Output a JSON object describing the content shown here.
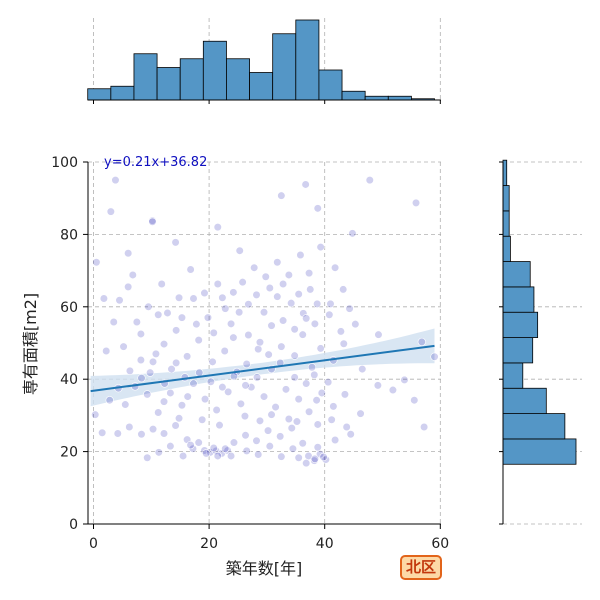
{
  "badge": {
    "label": "北区"
  },
  "chart_data": {
    "type": "scatter",
    "xlabel": "築年数[年]",
    "ylabel": "専有面積[m2]",
    "xlim": [
      -1,
      60
    ],
    "ylim": [
      0,
      100
    ],
    "xticks": [
      0,
      20,
      40,
      60
    ],
    "yticks": [
      0,
      20,
      40,
      60,
      80,
      100
    ],
    "grid": true,
    "regression": {
      "equation_label": "y=0.21x+36.82",
      "slope": 0.21,
      "intercept": 36.82,
      "x_range": [
        -0.5,
        59
      ],
      "ci_halfwidth_ends": [
        4.2,
        4.8
      ],
      "ci_halfwidth_mid": 1.6
    },
    "points": [
      [
        3.8,
        95
      ],
      [
        10.2,
        83.8
      ],
      [
        14.2,
        77.8
      ],
      [
        16.8,
        70.3
      ],
      [
        21.5,
        82
      ],
      [
        25.3,
        75.5
      ],
      [
        32.5,
        90.7
      ],
      [
        36.7,
        93.8
      ],
      [
        38.8,
        87.2
      ],
      [
        44.8,
        80.3
      ],
      [
        47.8,
        95
      ],
      [
        55.8,
        88.7
      ],
      [
        0.5,
        72.3
      ],
      [
        1.8,
        62.3
      ],
      [
        4.5,
        61.8
      ],
      [
        6,
        65.5
      ],
      [
        3,
        86.3
      ],
      [
        6,
        74.8
      ],
      [
        7.5,
        55.8
      ],
      [
        9.5,
        60
      ],
      [
        11.2,
        57.8
      ],
      [
        12.2,
        49.7
      ],
      [
        14.3,
        53.5
      ],
      [
        15.3,
        57
      ],
      [
        17.3,
        62.3
      ],
      [
        19.2,
        63.8
      ],
      [
        21.5,
        66.3
      ],
      [
        22.8,
        59.5
      ],
      [
        24.2,
        64
      ],
      [
        25.2,
        58.5
      ],
      [
        26.8,
        60.7
      ],
      [
        28.2,
        63.3
      ],
      [
        29.5,
        58.5
      ],
      [
        30.5,
        65.2
      ],
      [
        31.8,
        62.8
      ],
      [
        32.8,
        66.3
      ],
      [
        34.2,
        61
      ],
      [
        35.5,
        63.5
      ],
      [
        36.3,
        58.2
      ],
      [
        37.5,
        64.8
      ],
      [
        38.7,
        60.8
      ],
      [
        41,
        60.8
      ],
      [
        43.2,
        64.8
      ],
      [
        45.3,
        55.2
      ],
      [
        49.3,
        52.3
      ],
      [
        56.8,
        50.3
      ],
      [
        59,
        46.2
      ],
      [
        5.2,
        49
      ],
      [
        8.2,
        52.5
      ],
      [
        10.8,
        47
      ],
      [
        13.5,
        42.8
      ],
      [
        16.2,
        46.3
      ],
      [
        18.2,
        50.8
      ],
      [
        20.6,
        44.8
      ],
      [
        22.7,
        47.8
      ],
      [
        24.2,
        51.5
      ],
      [
        26.5,
        44.2
      ],
      [
        28.5,
        48.3
      ],
      [
        30.8,
        42.8
      ],
      [
        32.5,
        49
      ],
      [
        34.8,
        46.5
      ],
      [
        36.2,
        52.3
      ],
      [
        37.8,
        43.3
      ],
      [
        39.3,
        48.5
      ],
      [
        41.5,
        45.2
      ],
      [
        43.3,
        49.8
      ],
      [
        46.5,
        42.8
      ],
      [
        49.2,
        38.3
      ],
      [
        51.8,
        37
      ],
      [
        53.8,
        39.8
      ],
      [
        55.5,
        34.2
      ],
      [
        57.2,
        26.8
      ],
      [
        2.8,
        34.2
      ],
      [
        5.5,
        33
      ],
      [
        7.2,
        38
      ],
      [
        9.3,
        35.8
      ],
      [
        11.2,
        30.8
      ],
      [
        13.3,
        36.2
      ],
      [
        15.3,
        32.8
      ],
      [
        17.3,
        38.8
      ],
      [
        19.3,
        34.5
      ],
      [
        21.3,
        31.5
      ],
      [
        23.3,
        36.5
      ],
      [
        25.5,
        33.2
      ],
      [
        27.3,
        37.8
      ],
      [
        29.5,
        35.2
      ],
      [
        31.5,
        32.3
      ],
      [
        33.3,
        37.2
      ],
      [
        35.5,
        34.5
      ],
      [
        37.3,
        31
      ],
      [
        39.5,
        36.2
      ],
      [
        41.5,
        32.5
      ],
      [
        43.5,
        35.8
      ],
      [
        46.2,
        30.5
      ],
      [
        1.5,
        25.2
      ],
      [
        4.2,
        25
      ],
      [
        6.2,
        26.8
      ],
      [
        8.3,
        24.8
      ],
      [
        10.3,
        26.2
      ],
      [
        12.2,
        25
      ],
      [
        14.2,
        27.2
      ],
      [
        16.2,
        23.3
      ],
      [
        18.2,
        22.5
      ],
      [
        19.2,
        20.3
      ],
      [
        20.2,
        19.8
      ],
      [
        21.2,
        20.2
      ],
      [
        22.2,
        19.5
      ],
      [
        23.2,
        20.3
      ],
      [
        20.8,
        21
      ],
      [
        22.8,
        20.8
      ],
      [
        24.3,
        22.5
      ],
      [
        26.3,
        24.5
      ],
      [
        28.2,
        23
      ],
      [
        30.2,
        25.8
      ],
      [
        32.3,
        24.2
      ],
      [
        34.3,
        26.5
      ],
      [
        36.2,
        22.3
      ],
      [
        37.2,
        18.8
      ],
      [
        38.2,
        17.5
      ],
      [
        39.2,
        19.3
      ],
      [
        40.2,
        17.8
      ],
      [
        36.8,
        16.8
      ],
      [
        38.8,
        21.2
      ],
      [
        41.8,
        23.2
      ],
      [
        44.5,
        24.8
      ],
      [
        9.3,
        18.3
      ],
      [
        11.3,
        19.8
      ],
      [
        13.3,
        21.5
      ],
      [
        15.5,
        18.8
      ],
      [
        17.2,
        20.8
      ],
      [
        0.3,
        30.2
      ],
      [
        2.2,
        47.8
      ],
      [
        3.5,
        55.8
      ],
      [
        6.8,
        68.8
      ],
      [
        8.2,
        45.3
      ],
      [
        9.8,
        41.8
      ],
      [
        11.8,
        66.3
      ],
      [
        12.8,
        58.3
      ],
      [
        14.8,
        62.5
      ],
      [
        15.8,
        40.5
      ],
      [
        17.8,
        55.2
      ],
      [
        19.8,
        57
      ],
      [
        20.8,
        52.8
      ],
      [
        22.3,
        62.5
      ],
      [
        23.8,
        55.3
      ],
      [
        24.8,
        42
      ],
      [
        25.8,
        66.8
      ],
      [
        26.8,
        52.2
      ],
      [
        27.8,
        70.8
      ],
      [
        28.8,
        50.2
      ],
      [
        29.8,
        68.3
      ],
      [
        30.8,
        54.8
      ],
      [
        31.8,
        72.3
      ],
      [
        32.8,
        56.2
      ],
      [
        33.8,
        68.8
      ],
      [
        34.8,
        53.8
      ],
      [
        35.8,
        74.3
      ],
      [
        36.8,
        56.8
      ],
      [
        37.3,
        69.3
      ],
      [
        38.3,
        55.3
      ],
      [
        39.3,
        76.5
      ],
      [
        40.8,
        57.8
      ],
      [
        41.8,
        70.8
      ],
      [
        42.8,
        53.2
      ],
      [
        44.3,
        59.5
      ],
      [
        12.2,
        33.8
      ],
      [
        14.8,
        29.2
      ],
      [
        18.8,
        28.8
      ],
      [
        21.8,
        27.3
      ],
      [
        26.2,
        29.8
      ],
      [
        28.8,
        28.5
      ],
      [
        30.8,
        30.2
      ],
      [
        33.8,
        29
      ],
      [
        35.2,
        28.3
      ],
      [
        38.8,
        27.5
      ],
      [
        41.2,
        28.8
      ],
      [
        43.8,
        26.8
      ],
      [
        19.5,
        19.5
      ],
      [
        21.5,
        18.8
      ],
      [
        23.8,
        18.8
      ],
      [
        26.5,
        20.2
      ],
      [
        28.5,
        19.2
      ],
      [
        30.5,
        21.5
      ],
      [
        32.5,
        18.6
      ],
      [
        34.5,
        20.8
      ],
      [
        35.5,
        18.3
      ],
      [
        38.3,
        18
      ],
      [
        39.8,
        18.5
      ],
      [
        16.8,
        21.8
      ],
      [
        10.2,
        83.5
      ],
      [
        38.2,
        41.2
      ],
      [
        36.8,
        38.8
      ],
      [
        38.6,
        34.2
      ],
      [
        40.6,
        39.2
      ],
      [
        34.8,
        40.5
      ],
      [
        32.3,
        44.5
      ],
      [
        30.3,
        46.8
      ],
      [
        28.3,
        40.5
      ],
      [
        26.3,
        38.3
      ],
      [
        24.3,
        40.8
      ],
      [
        22.3,
        37.8
      ],
      [
        20.3,
        39.3
      ],
      [
        18.3,
        41.8
      ],
      [
        16.3,
        35.2
      ],
      [
        14.3,
        44.5
      ],
      [
        12.3,
        38.8
      ],
      [
        10.3,
        44.8
      ],
      [
        8.3,
        40.3
      ],
      [
        6.3,
        42.3
      ],
      [
        4.3,
        37.5
      ]
    ],
    "x_histogram": {
      "bin_edges": [
        -1,
        3,
        7,
        11,
        15,
        19,
        23,
        27,
        31,
        35,
        39,
        43,
        47,
        51,
        55,
        59
      ],
      "counts": [
        9,
        11,
        37,
        26,
        33,
        47,
        33,
        22,
        53,
        64,
        24,
        7,
        3,
        3,
        1
      ]
    },
    "y_histogram": {
      "bin_edges": [
        16.5,
        23.5,
        30.5,
        37.5,
        44.5,
        51.5,
        58.5,
        65.5,
        72.5,
        79.5,
        86.5,
        93.5,
        100.5
      ],
      "counts": [
        59,
        50,
        35,
        16,
        24,
        28,
        25,
        22,
        6,
        5,
        5,
        3
      ]
    },
    "colors": {
      "histogram": "#5496c6",
      "points": "#2a2ab4",
      "regression": "#1f77b4",
      "ci_band": "#cfe0f0"
    }
  }
}
